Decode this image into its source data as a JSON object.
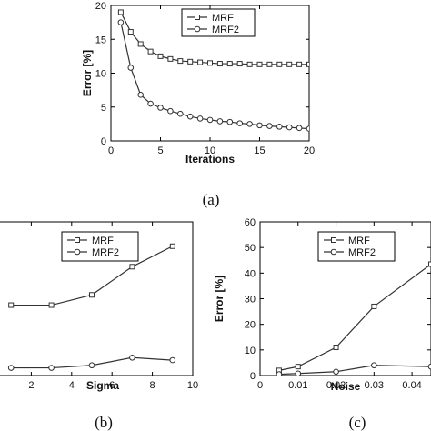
{
  "chart_data": [
    {
      "type": "line",
      "caption": "(a)",
      "xlabel": "Iterations",
      "ylabel": "Error [%]",
      "xlim": [
        0,
        20
      ],
      "ylim": [
        0,
        20
      ],
      "xticks": [
        0,
        5,
        10,
        15,
        20
      ],
      "yticks": [
        0,
        5,
        10,
        15,
        20
      ],
      "legend": "top-center",
      "series": [
        {
          "name": "MRF",
          "marker": "square",
          "x": [
            1,
            2,
            3,
            4,
            5,
            6,
            7,
            8,
            9,
            10,
            11,
            12,
            13,
            14,
            15,
            16,
            17,
            18,
            19,
            20
          ],
          "y": [
            19.0,
            16.1,
            14.3,
            13.2,
            12.5,
            12.1,
            11.8,
            11.7,
            11.6,
            11.5,
            11.4,
            11.4,
            11.4,
            11.3,
            11.3,
            11.3,
            11.3,
            11.3,
            11.3,
            11.3
          ]
        },
        {
          "name": "MRF2",
          "marker": "circle",
          "x": [
            1,
            2,
            3,
            4,
            5,
            6,
            7,
            8,
            9,
            10,
            11,
            12,
            13,
            14,
            15,
            16,
            17,
            18,
            19,
            20
          ],
          "y": [
            17.5,
            10.8,
            6.8,
            5.5,
            4.9,
            4.4,
            4.0,
            3.6,
            3.3,
            3.1,
            2.9,
            2.8,
            2.6,
            2.5,
            2.3,
            2.2,
            2.1,
            2.0,
            1.9,
            1.8
          ]
        }
      ]
    },
    {
      "type": "line",
      "caption": "(b)",
      "xlabel": "Sigma",
      "ylabel": "",
      "xlim": [
        0,
        10
      ],
      "ylim": [
        0,
        60
      ],
      "xticks": [
        2,
        4,
        6,
        8,
        10
      ],
      "yticks": [],
      "legend": "top-center",
      "series": [
        {
          "name": "MRF",
          "marker": "square",
          "x": [
            1,
            3,
            5,
            7,
            9
          ],
          "y": [
            27.5,
            27.5,
            31.5,
            42.5,
            50.5
          ]
        },
        {
          "name": "MRF2",
          "marker": "circle",
          "x": [
            1,
            3,
            5,
            7,
            9
          ],
          "y": [
            3.0,
            3.0,
            4.0,
            7.0,
            6.0
          ]
        }
      ]
    },
    {
      "type": "line",
      "caption": "(c)",
      "xlabel": "Noise",
      "ylabel": "Error [%]",
      "xlim": [
        0,
        0.045
      ],
      "ylim": [
        0,
        60
      ],
      "xticks": [
        0,
        0.01,
        0.02,
        0.03,
        0.04
      ],
      "yticks": [
        0,
        10,
        20,
        30,
        40,
        50,
        60
      ],
      "legend": "top-center",
      "series": [
        {
          "name": "MRF",
          "marker": "square",
          "x": [
            0.005,
            0.01,
            0.02,
            0.03,
            0.045
          ],
          "y": [
            2.0,
            3.5,
            11.0,
            27.0,
            43.5
          ]
        },
        {
          "name": "MRF2",
          "marker": "circle",
          "x": [
            0.005,
            0.01,
            0.02,
            0.03,
            0.045
          ],
          "y": [
            0.5,
            0.8,
            1.5,
            4.0,
            3.5
          ]
        }
      ]
    }
  ]
}
